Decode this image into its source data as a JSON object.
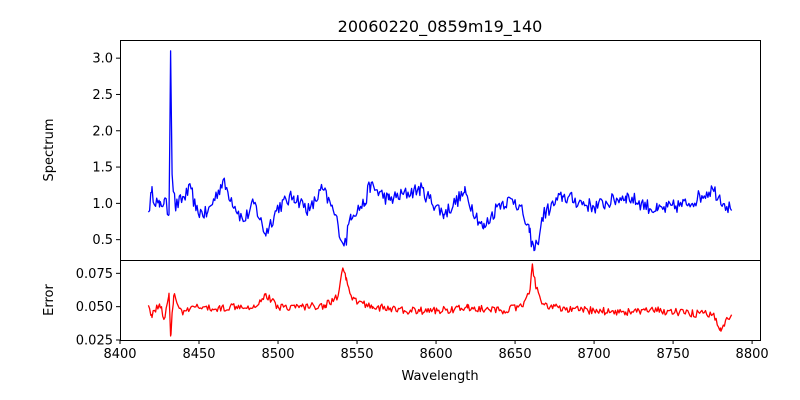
{
  "chart_data": [
    {
      "type": "line",
      "title": "20060220_0859m19_140",
      "xlabel": "",
      "ylabel": "Spectrum",
      "xlim": [
        8400,
        8805
      ],
      "ylim": [
        0.22,
        3.25
      ],
      "yticks": [
        0.5,
        1.0,
        1.5,
        2.0,
        2.5,
        3.0
      ],
      "ytick_labels": [
        "0.5",
        "1.0",
        "1.5",
        "2.0",
        "2.5",
        "3.0"
      ],
      "grid": false,
      "series": [
        {
          "color": "#0000ff",
          "x_range": [
            8418,
            8787
          ],
          "approx_points": [
            [
              8418,
              0.88
            ],
            [
              8420,
              1.15
            ],
            [
              8425,
              0.95
            ],
            [
              8428,
              1.05
            ],
            [
              8431,
              0.85
            ],
            [
              8432,
              3.1
            ],
            [
              8433,
              1.4
            ],
            [
              8435,
              0.95
            ],
            [
              8445,
              1.2
            ],
            [
              8448,
              0.9
            ],
            [
              8455,
              0.85
            ],
            [
              8465,
              1.3
            ],
            [
              8478,
              0.75
            ],
            [
              8485,
              1.0
            ],
            [
              8492,
              0.58
            ],
            [
              8500,
              0.95
            ],
            [
              8510,
              1.1
            ],
            [
              8520,
              0.9
            ],
            [
              8528,
              1.2
            ],
            [
              8535,
              0.9
            ],
            [
              8538,
              0.7
            ],
            [
              8541,
              0.45
            ],
            [
              8543,
              0.48
            ],
            [
              8546,
              0.85
            ],
            [
              8555,
              1.0
            ],
            [
              8558,
              1.25
            ],
            [
              8570,
              1.05
            ],
            [
              8590,
              1.2
            ],
            [
              8605,
              0.85
            ],
            [
              8618,
              1.15
            ],
            [
              8630,
              0.65
            ],
            [
              8640,
              1.0
            ],
            [
              8650,
              1.05
            ],
            [
              8655,
              0.85
            ],
            [
              8659,
              0.6
            ],
            [
              8662,
              0.35
            ],
            [
              8664,
              0.45
            ],
            [
              8668,
              0.85
            ],
            [
              8680,
              1.1
            ],
            [
              8700,
              0.95
            ],
            [
              8720,
              1.1
            ],
            [
              8740,
              0.9
            ],
            [
              8760,
              1.0
            ],
            [
              8775,
              1.2
            ],
            [
              8787,
              0.9
            ]
          ]
        }
      ]
    },
    {
      "type": "line",
      "title": "",
      "xlabel": "Wavelength",
      "ylabel": "Error",
      "xlim": [
        8400,
        8805
      ],
      "ylim": [
        0.025,
        0.085
      ],
      "xticks": [
        8400,
        8450,
        8500,
        8550,
        8600,
        8650,
        8700,
        8750,
        8800
      ],
      "xtick_labels": [
        "8400",
        "8450",
        "8500",
        "8550",
        "8600",
        "8650",
        "8700",
        "8750",
        "8800"
      ],
      "yticks": [
        0.025,
        0.05,
        0.075
      ],
      "ytick_labels": [
        "0.025",
        "0.050",
        "0.075"
      ],
      "grid": false,
      "series": [
        {
          "color": "#ff0000",
          "x_range": [
            8418,
            8787
          ],
          "approx_points": [
            [
              8418,
              0.051
            ],
            [
              8420,
              0.044
            ],
            [
              8425,
              0.052
            ],
            [
              8428,
              0.041
            ],
            [
              8431,
              0.06
            ],
            [
              8432,
              0.028
            ],
            [
              8434,
              0.058
            ],
            [
              8440,
              0.045
            ],
            [
              8448,
              0.05
            ],
            [
              8460,
              0.048
            ],
            [
              8475,
              0.051
            ],
            [
              8485,
              0.05
            ],
            [
              8492,
              0.059
            ],
            [
              8500,
              0.05
            ],
            [
              8515,
              0.05
            ],
            [
              8530,
              0.051
            ],
            [
              8538,
              0.058
            ],
            [
              8541,
              0.079
            ],
            [
              8543,
              0.07
            ],
            [
              8547,
              0.055
            ],
            [
              8560,
              0.05
            ],
            [
              8580,
              0.047
            ],
            [
              8600,
              0.047
            ],
            [
              8620,
              0.049
            ],
            [
              8640,
              0.047
            ],
            [
              8655,
              0.05
            ],
            [
              8659,
              0.06
            ],
            [
              8661,
              0.082
            ],
            [
              8663,
              0.065
            ],
            [
              8667,
              0.052
            ],
            [
              8680,
              0.048
            ],
            [
              8700,
              0.047
            ],
            [
              8720,
              0.046
            ],
            [
              8740,
              0.047
            ],
            [
              8760,
              0.045
            ],
            [
              8775,
              0.044
            ],
            [
              8780,
              0.034
            ],
            [
              8787,
              0.044
            ]
          ]
        }
      ]
    }
  ]
}
